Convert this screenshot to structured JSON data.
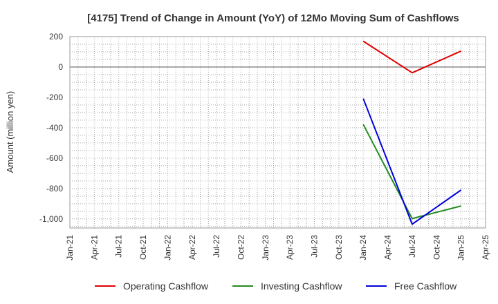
{
  "chart_data": {
    "type": "line",
    "title": "[4175]  Trend of Change in Amount (YoY) of 12Mo Moving Sum of Cashflows",
    "xlabel": "",
    "ylabel": "Amount (million yen)",
    "ylim": [
      -1060,
      200
    ],
    "yticks": [
      200,
      0,
      -200,
      -400,
      -600,
      -800,
      -1000
    ],
    "ytick_labels": [
      "200",
      "0",
      "-200",
      "-400",
      "-600",
      "-800",
      "-1,000"
    ],
    "xticks": [
      "Jan-21",
      "Apr-21",
      "Jul-21",
      "Oct-21",
      "Jan-22",
      "Apr-22",
      "Jul-22",
      "Oct-22",
      "Jan-23",
      "Apr-23",
      "Jul-23",
      "Oct-23",
      "Jan-24",
      "Apr-24",
      "Jul-24",
      "Oct-24",
      "Jan-25",
      "Apr-25"
    ],
    "grid": true,
    "legend_position": "bottom",
    "series": [
      {
        "name": "Operating Cashflow",
        "color": "#e00000",
        "x": [
          "Jan-24",
          "Jul-24",
          "Jan-25"
        ],
        "values": [
          170,
          -38,
          105
        ]
      },
      {
        "name": "Investing Cashflow",
        "color": "#228b22",
        "x": [
          "Jan-24",
          "Jul-24",
          "Jan-25"
        ],
        "values": [
          -378,
          -998,
          -915
        ]
      },
      {
        "name": "Free Cashflow",
        "color": "#0000dd",
        "x": [
          "Jan-24",
          "Jul-24",
          "Jan-25"
        ],
        "values": [
          -208,
          -1035,
          -810
        ]
      }
    ]
  }
}
